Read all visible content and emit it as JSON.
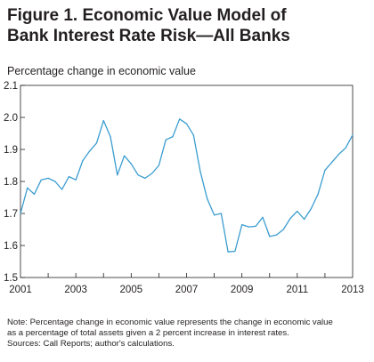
{
  "figure": {
    "title_line1": "Figure 1. Economic Value Model of",
    "title_line2": "Bank Interest Rate Risk—All Banks",
    "note_line1": "Note: Percentage change in economic value represents the change in economic value",
    "note_line2": "as a percentage of total assets given a 2 percent increase in interest rates.",
    "sources": "Sources: Call Reports; author's calculations."
  },
  "chart_data": {
    "type": "line",
    "title": "Figure 1. Economic Value Model of Bank Interest Rate Risk—All Banks",
    "xlabel": "",
    "ylabel": "Percentage change in economic value",
    "xlim": [
      2001,
      2013
    ],
    "ylim": [
      1.5,
      2.1
    ],
    "yticks": [
      "1.5",
      "1.6",
      "1.7",
      "1.8",
      "1.9",
      "2.0",
      "2.1"
    ],
    "xticks": [
      "2001",
      "2003",
      "2005",
      "2007",
      "2009",
      "2011",
      "2013"
    ],
    "grid": false,
    "line_color": "#3a9dcf",
    "series": [
      {
        "x": [
          2001.0,
          2001.25,
          2001.5,
          2001.75,
          2002.0,
          2002.25,
          2002.5,
          2002.75,
          2003.0,
          2003.25,
          2003.5,
          2003.75,
          2004.0,
          2004.25,
          2004.5,
          2004.75,
          2005.0,
          2005.25,
          2005.5,
          2005.75,
          2006.0,
          2006.25,
          2006.5,
          2006.75,
          2007.0,
          2007.25,
          2007.5,
          2007.75,
          2008.0,
          2008.25,
          2008.5,
          2008.75,
          2009.0,
          2009.25,
          2009.5,
          2009.75,
          2010.0,
          2010.25,
          2010.5,
          2010.75,
          2011.0,
          2011.25,
          2011.5,
          2011.75,
          2012.0,
          2012.25,
          2012.5,
          2012.75,
          2013.0
        ],
        "values": [
          1.7,
          1.78,
          1.76,
          1.805,
          1.81,
          1.8,
          1.775,
          1.815,
          1.805,
          1.865,
          1.895,
          1.92,
          1.99,
          1.94,
          1.82,
          1.88,
          1.855,
          1.82,
          1.81,
          1.825,
          1.85,
          1.93,
          1.94,
          1.995,
          1.98,
          1.945,
          1.83,
          1.745,
          1.695,
          1.7,
          1.58,
          1.582,
          1.665,
          1.658,
          1.66,
          1.688,
          1.628,
          1.633,
          1.65,
          1.685,
          1.707,
          1.682,
          1.715,
          1.76,
          1.835,
          1.86,
          1.885,
          1.905,
          1.945
        ]
      }
    ]
  }
}
